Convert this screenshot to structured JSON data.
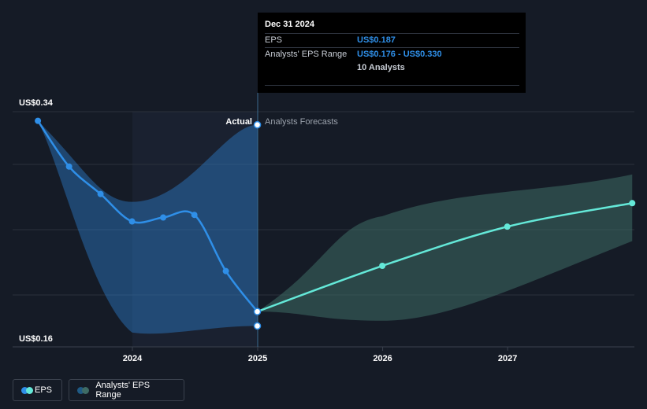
{
  "chart_data": {
    "type": "line",
    "y_axis": {
      "min_label": "US$0.16",
      "max_label": "US$0.34",
      "ylim": [
        0.16,
        0.34
      ],
      "grid": true
    },
    "x_axis": {
      "tick_labels": [
        "2024",
        "2025",
        "2026",
        "2027"
      ]
    },
    "divider_labels": {
      "left": "Actual",
      "right": "Analysts Forecasts"
    },
    "series": [
      {
        "name": "EPS",
        "color": "#2f8fe8",
        "points": [
          {
            "x": "2023-03-31",
            "y": 0.333
          },
          {
            "x": "2023-06-30",
            "y": 0.298
          },
          {
            "x": "2023-09-30",
            "y": 0.277
          },
          {
            "x": "2023-12-31",
            "y": 0.256
          },
          {
            "x": "2024-03-31",
            "y": 0.259
          },
          {
            "x": "2024-06-30",
            "y": 0.261
          },
          {
            "x": "2024-09-30",
            "y": 0.218
          },
          {
            "x": "2024-12-31",
            "y": 0.187
          }
        ]
      },
      {
        "name": "EPS Forecast",
        "color": "#64e8d8",
        "points": [
          {
            "x": "2024-12-31",
            "y": 0.187
          },
          {
            "x": "2025-12-31",
            "y": 0.222
          },
          {
            "x": "2026-12-31",
            "y": 0.252
          },
          {
            "x": "2027-12-31",
            "y": 0.27
          }
        ]
      }
    ],
    "range_bands": [
      {
        "name": "Analysts' EPS Range",
        "color": "#2f8fe8",
        "points": [
          {
            "x": "2023-03-31",
            "low": 0.333,
            "high": 0.333
          },
          {
            "x": "2023-12-31",
            "low": 0.171,
            "high": 0.271
          },
          {
            "x": "2024-12-31",
            "low": 0.176,
            "high": 0.33
          }
        ]
      },
      {
        "name": "Analysts' EPS Range",
        "color": "#3e6b65",
        "points": [
          {
            "x": "2024-12-31",
            "low": 0.187,
            "high": 0.187
          },
          {
            "x": "2025-12-31",
            "low": 0.18,
            "high": 0.26
          },
          {
            "x": "2027-12-31",
            "low": 0.241,
            "high": 0.292
          }
        ]
      }
    ],
    "extra_marker": {
      "x": "2024-12-31",
      "y": 0.176
    },
    "legend": [
      "EPS",
      "Analysts' EPS Range"
    ],
    "legend_placement": "bottom-left"
  },
  "tooltip": {
    "date": "Dec 31 2024",
    "rows": [
      {
        "label": "EPS",
        "value": "US$0.187"
      },
      {
        "label": "Analysts' EPS Range",
        "value": "US$0.176 - US$0.330"
      },
      {
        "label": "",
        "value": "10 Analysts"
      }
    ]
  },
  "legend": {
    "eps_label": "EPS",
    "range_label": "Analysts' EPS Range"
  }
}
